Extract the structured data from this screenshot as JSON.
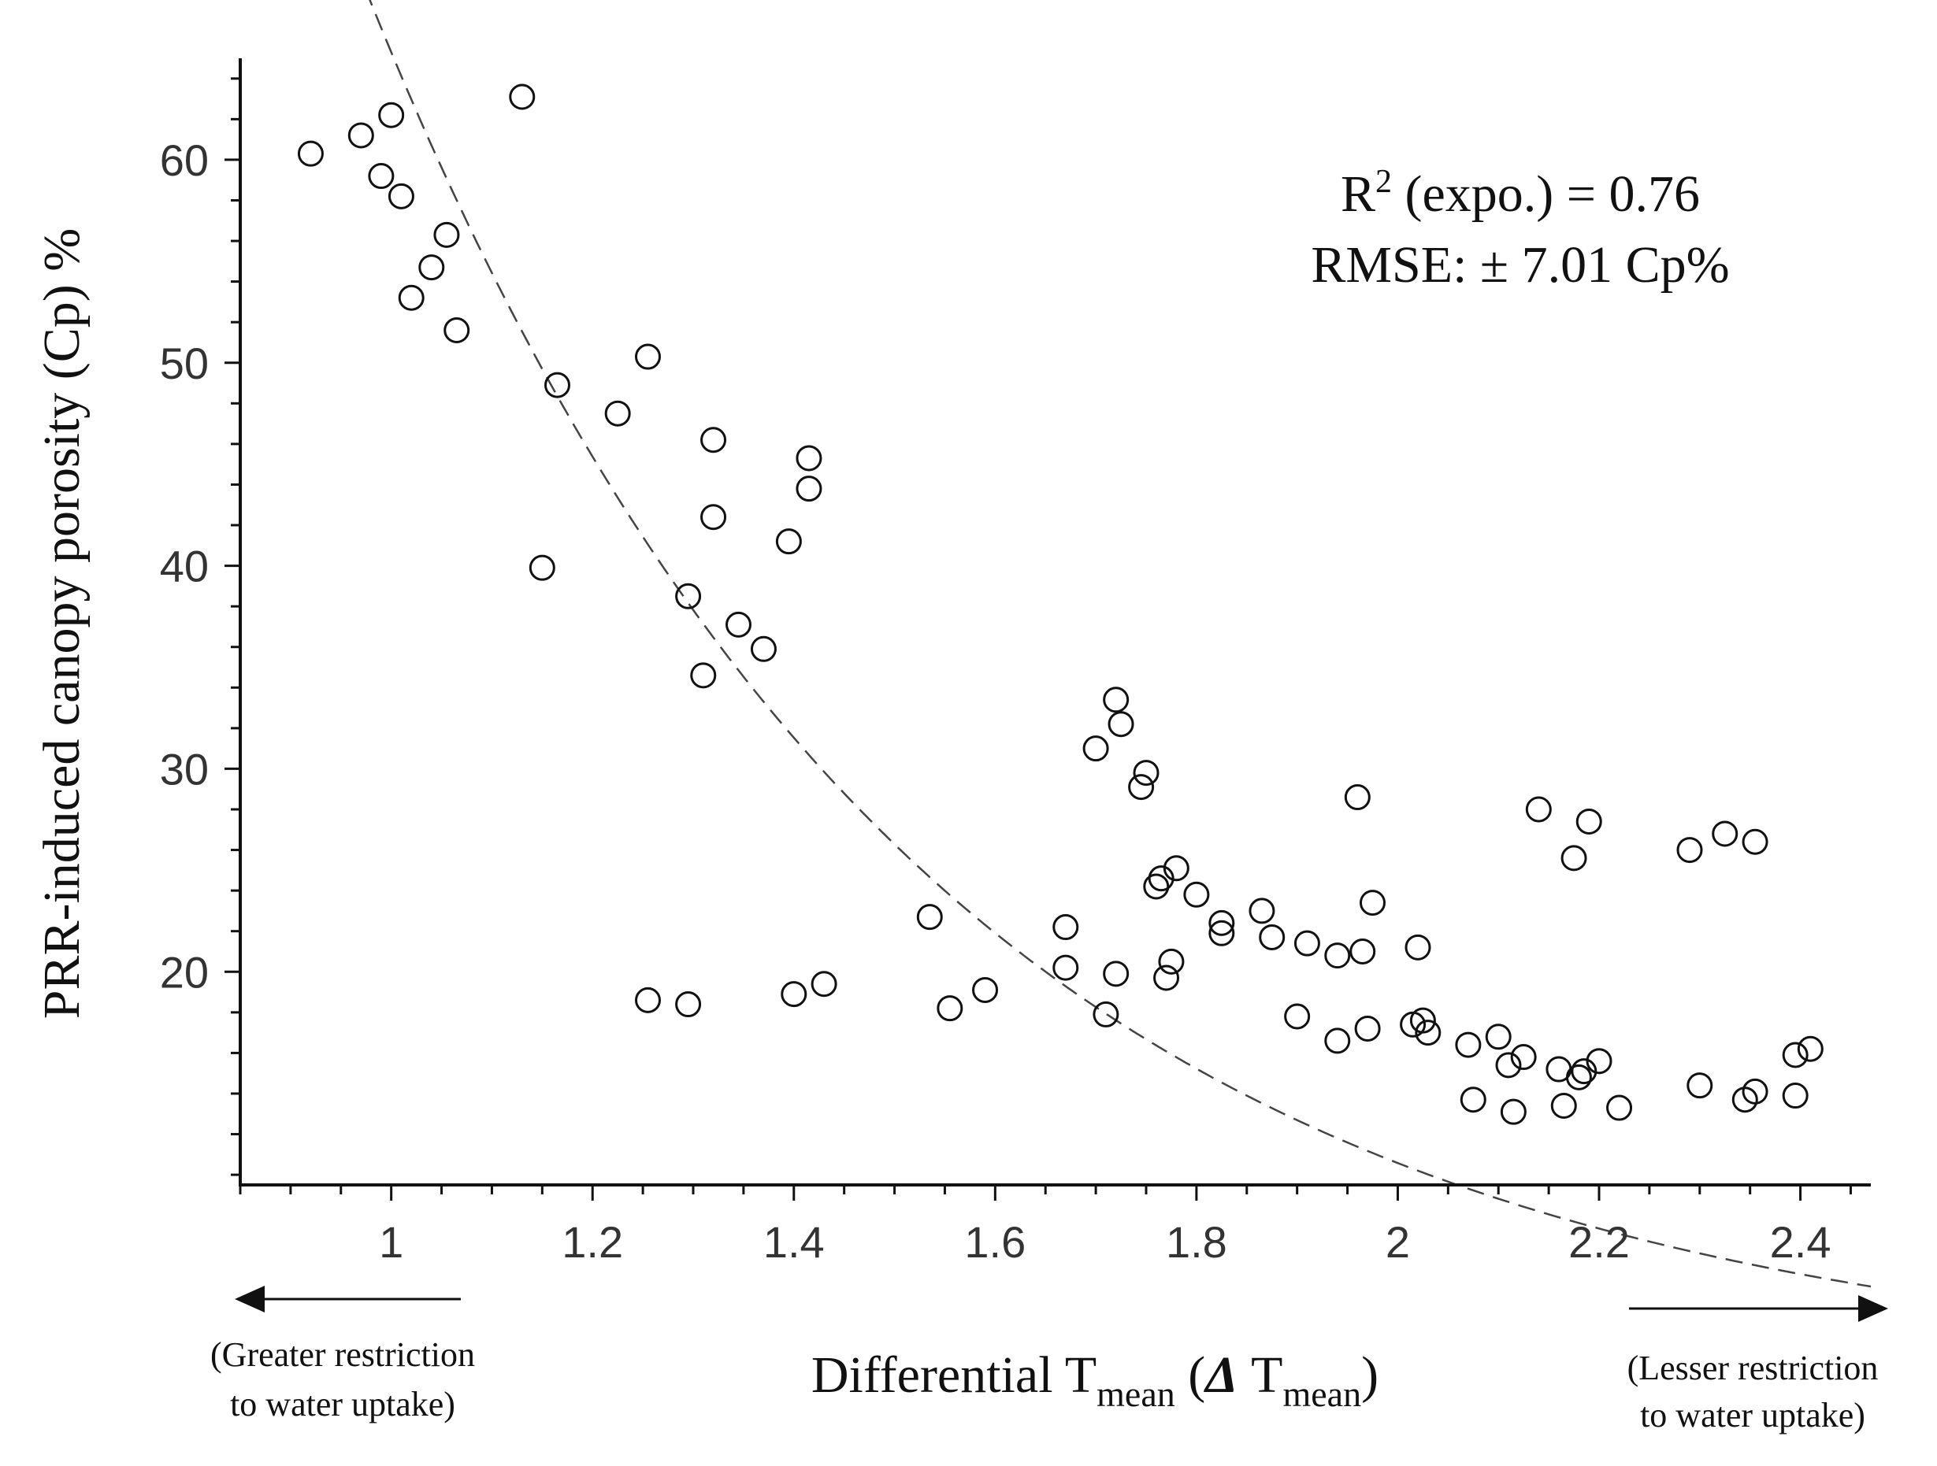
{
  "chart_data": {
    "type": "scatter",
    "title": "",
    "xlabel": {
      "main": "Differential T",
      "sub": "mean",
      "open": " (",
      "delta": "Δ",
      "space": " ",
      "main2": "T",
      "sub2": "mean",
      "close": ")"
    },
    "ylabel": "PRR-induced canopy porosity (Cp) %",
    "xlim": [
      0.85,
      2.47
    ],
    "ylim": [
      9.5,
      65
    ],
    "xticks": [
      1,
      1.2,
      1.4,
      1.6,
      1.8,
      2,
      2.2,
      2.4
    ],
    "xtick_labels": [
      "1",
      "1.2",
      "1.4",
      "1.6",
      "1.8",
      "2",
      "2.2",
      "2.4"
    ],
    "yticks": [
      20,
      30,
      40,
      50,
      60
    ],
    "ytick_labels": [
      "20",
      "30",
      "40",
      "50",
      "60"
    ],
    "annotation": {
      "r2_prefix": "R",
      "r2_sup": "2",
      "r2_rest": " (expo.) = 0.76",
      "rmse": "RMSE: ± 7.01 Cp%"
    },
    "left_note": [
      "(Greater restriction",
      "to water uptake)"
    ],
    "right_note": [
      "(Lesser restriction",
      "to water uptake)"
    ],
    "fit": {
      "type": "exponential",
      "a": 403,
      "b": -1.82,
      "style": "dashed"
    },
    "points": [
      {
        "x": 0.92,
        "y": 60.3
      },
      {
        "x": 0.97,
        "y": 61.2
      },
      {
        "x": 0.99,
        "y": 59.2
      },
      {
        "x": 1.0,
        "y": 62.2
      },
      {
        "x": 1.01,
        "y": 58.2
      },
      {
        "x": 1.02,
        "y": 53.2
      },
      {
        "x": 1.04,
        "y": 54.7
      },
      {
        "x": 1.055,
        "y": 56.3
      },
      {
        "x": 1.065,
        "y": 51.6
      },
      {
        "x": 1.13,
        "y": 63.1
      },
      {
        "x": 1.15,
        "y": 39.9
      },
      {
        "x": 1.165,
        "y": 48.9
      },
      {
        "x": 1.225,
        "y": 47.5
      },
      {
        "x": 1.255,
        "y": 50.3
      },
      {
        "x": 1.255,
        "y": 18.6
      },
      {
        "x": 1.295,
        "y": 38.5
      },
      {
        "x": 1.295,
        "y": 18.4
      },
      {
        "x": 1.31,
        "y": 34.6
      },
      {
        "x": 1.32,
        "y": 46.2
      },
      {
        "x": 1.32,
        "y": 42.4
      },
      {
        "x": 1.345,
        "y": 37.1
      },
      {
        "x": 1.37,
        "y": 35.9
      },
      {
        "x": 1.395,
        "y": 41.2
      },
      {
        "x": 1.4,
        "y": 18.9
      },
      {
        "x": 1.415,
        "y": 45.3
      },
      {
        "x": 1.415,
        "y": 43.8
      },
      {
        "x": 1.43,
        "y": 19.4
      },
      {
        "x": 1.535,
        "y": 22.7
      },
      {
        "x": 1.555,
        "y": 18.2
      },
      {
        "x": 1.59,
        "y": 19.1
      },
      {
        "x": 1.67,
        "y": 22.2
      },
      {
        "x": 1.67,
        "y": 20.2
      },
      {
        "x": 1.7,
        "y": 31.0
      },
      {
        "x": 1.71,
        "y": 17.9
      },
      {
        "x": 1.72,
        "y": 19.9
      },
      {
        "x": 1.72,
        "y": 33.4
      },
      {
        "x": 1.725,
        "y": 32.2
      },
      {
        "x": 1.745,
        "y": 29.1
      },
      {
        "x": 1.75,
        "y": 29.8
      },
      {
        "x": 1.76,
        "y": 24.2
      },
      {
        "x": 1.765,
        "y": 24.6
      },
      {
        "x": 1.77,
        "y": 19.7
      },
      {
        "x": 1.775,
        "y": 20.5
      },
      {
        "x": 1.78,
        "y": 25.1
      },
      {
        "x": 1.8,
        "y": 23.8
      },
      {
        "x": 1.825,
        "y": 22.4
      },
      {
        "x": 1.825,
        "y": 21.9
      },
      {
        "x": 1.865,
        "y": 23.0
      },
      {
        "x": 1.875,
        "y": 21.7
      },
      {
        "x": 1.9,
        "y": 17.8
      },
      {
        "x": 1.91,
        "y": 21.4
      },
      {
        "x": 1.94,
        "y": 20.8
      },
      {
        "x": 1.94,
        "y": 16.6
      },
      {
        "x": 1.96,
        "y": 28.6
      },
      {
        "x": 1.965,
        "y": 21.0
      },
      {
        "x": 1.97,
        "y": 17.2
      },
      {
        "x": 1.975,
        "y": 23.4
      },
      {
        "x": 2.015,
        "y": 17.4
      },
      {
        "x": 2.02,
        "y": 21.2
      },
      {
        "x": 2.025,
        "y": 17.6
      },
      {
        "x": 2.03,
        "y": 17.0
      },
      {
        "x": 2.07,
        "y": 16.4
      },
      {
        "x": 2.075,
        "y": 13.7
      },
      {
        "x": 2.1,
        "y": 16.8
      },
      {
        "x": 2.11,
        "y": 15.4
      },
      {
        "x": 2.115,
        "y": 13.1
      },
      {
        "x": 2.125,
        "y": 15.8
      },
      {
        "x": 2.14,
        "y": 28.0
      },
      {
        "x": 2.16,
        "y": 15.2
      },
      {
        "x": 2.165,
        "y": 13.4
      },
      {
        "x": 2.175,
        "y": 25.6
      },
      {
        "x": 2.18,
        "y": 14.8
      },
      {
        "x": 2.185,
        "y": 15.1
      },
      {
        "x": 2.19,
        "y": 27.4
      },
      {
        "x": 2.2,
        "y": 15.6
      },
      {
        "x": 2.22,
        "y": 13.3
      },
      {
        "x": 2.29,
        "y": 26.0
      },
      {
        "x": 2.3,
        "y": 14.4
      },
      {
        "x": 2.325,
        "y": 26.8
      },
      {
        "x": 2.345,
        "y": 13.7
      },
      {
        "x": 2.355,
        "y": 14.1
      },
      {
        "x": 2.355,
        "y": 26.4
      },
      {
        "x": 2.395,
        "y": 15.9
      },
      {
        "x": 2.395,
        "y": 13.9
      },
      {
        "x": 2.41,
        "y": 16.2
      }
    ]
  }
}
